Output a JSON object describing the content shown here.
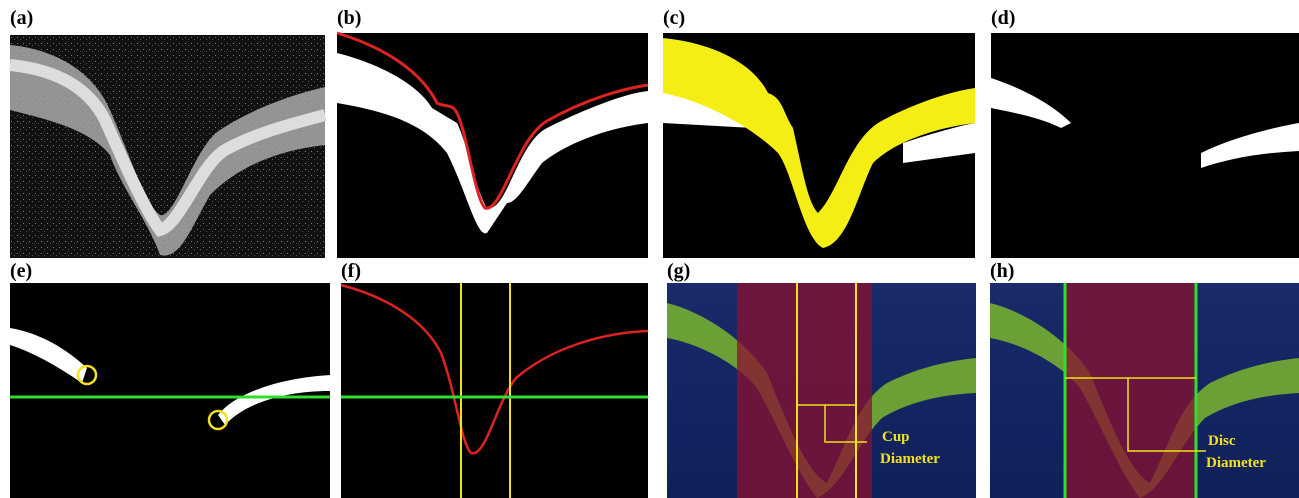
{
  "panels": [
    {
      "label": "(a)"
    },
    {
      "label": "(b)"
    },
    {
      "label": "(c)"
    },
    {
      "label": "(d)"
    },
    {
      "label": "(e)"
    },
    {
      "label": "(f)"
    },
    {
      "label": "(g)",
      "annotation": [
        "Cup",
        "Diameter"
      ]
    },
    {
      "label": "(h)",
      "annotation": [
        "Disc",
        "Diameter"
      ]
    }
  ]
}
